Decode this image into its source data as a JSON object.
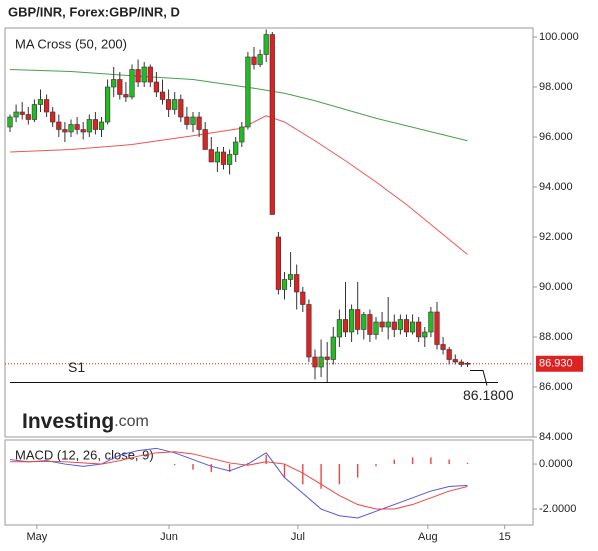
{
  "header": {
    "title": "GBP/INR, Forex:GBP/INR, D"
  },
  "chart_data": [
    {
      "type": "candlestick",
      "legend": "MA Cross (50, 200)",
      "logo": {
        "main": "Investing",
        "suffix": ".com"
      },
      "x": [
        0,
        1,
        2,
        3,
        4,
        5,
        6,
        7,
        8,
        9,
        10,
        11,
        12,
        13,
        14,
        15,
        16,
        17,
        18,
        19,
        20,
        21,
        22,
        23,
        24,
        25,
        26,
        27,
        28,
        29,
        30,
        31,
        32,
        33,
        34,
        35,
        36,
        37,
        38,
        39,
        40,
        41,
        42,
        43,
        44,
        45,
        46,
        47,
        48,
        49,
        50,
        51,
        52,
        53,
        54,
        55,
        56,
        57,
        58,
        59,
        60,
        61,
        62,
        63,
        64,
        65,
        66,
        67,
        68,
        69,
        70,
        71,
        72,
        73,
        74,
        75
      ],
      "open": [
        96.4,
        96.8,
        97.0,
        96.9,
        96.7,
        97.3,
        97.5,
        97.0,
        96.6,
        96.3,
        96.2,
        96.5,
        96.3,
        96.2,
        96.7,
        96.3,
        96.6,
        98.0,
        98.3,
        97.7,
        97.6,
        98.7,
        98.2,
        98.8,
        98.2,
        97.8,
        97.5,
        97.1,
        97.5,
        96.8,
        96.5,
        96.8,
        96.3,
        95.5,
        95.0,
        95.4,
        94.9,
        95.3,
        95.8,
        96.4,
        99.2,
        98.9,
        99.3,
        100.1,
        92.0,
        89.9,
        90.3,
        90.5,
        89.8,
        89.3,
        87.2,
        86.8,
        87.2,
        87.1,
        88.0,
        88.7,
        88.2,
        89.1,
        88.3,
        88.9,
        88.1,
        88.6,
        88.4,
        88.6,
        88.3,
        88.7,
        88.2,
        88.6,
        88.0,
        88.2,
        89.0,
        87.7,
        87.5,
        87.1,
        87.0,
        86.95
      ],
      "high": [
        96.9,
        97.3,
        97.4,
        97.2,
        97.5,
        97.9,
        97.7,
        97.2,
        96.9,
        96.6,
        96.7,
        96.8,
        96.6,
        96.9,
        97.0,
        96.8,
        98.3,
        98.8,
        98.6,
        98.2,
        98.9,
        99.1,
        99.0,
        98.9,
        98.6,
        98.3,
        97.9,
        97.8,
        97.7,
        97.2,
        97.0,
        97.0,
        96.6,
        96.0,
        95.6,
        95.6,
        95.5,
        96.0,
        96.6,
        99.4,
        99.6,
        99.5,
        100.3,
        100.2,
        92.2,
        90.6,
        91.4,
        90.9,
        90.0,
        89.5,
        87.5,
        87.9,
        87.8,
        88.4,
        89.1,
        90.2,
        89.3,
        90.2,
        89.0,
        89.1,
        88.8,
        89.0,
        89.6,
        88.9,
        88.9,
        88.9,
        88.9,
        88.8,
        88.4,
        89.2,
        89.4,
        88.0,
        87.6,
        87.3,
        87.1,
        87.0
      ],
      "low": [
        96.2,
        96.6,
        96.7,
        96.5,
        96.6,
        97.0,
        96.8,
        96.4,
        96.0,
        95.8,
        96.0,
        96.1,
        95.9,
        96.0,
        96.1,
        96.0,
        96.5,
        97.6,
        97.5,
        97.4,
        97.5,
        98.0,
        98.0,
        98.0,
        97.6,
        97.3,
        96.8,
        96.9,
        96.6,
        96.3,
        96.2,
        96.0,
        95.5,
        95.0,
        94.6,
        94.7,
        94.5,
        95.0,
        95.6,
        96.3,
        98.7,
        98.8,
        99.0,
        92.9,
        89.7,
        89.5,
        90.0,
        89.1,
        89.0,
        87.0,
        86.3,
        86.4,
        86.2,
        86.9,
        87.6,
        88.0,
        87.8,
        88.1,
        87.9,
        87.8,
        87.9,
        88.2,
        87.9,
        88.0,
        88.1,
        88.0,
        88.1,
        87.8,
        87.6,
        88.0,
        87.5,
        87.3,
        86.9,
        86.9,
        86.8,
        86.8
      ],
      "close": [
        96.8,
        97.0,
        96.9,
        96.7,
        97.3,
        97.5,
        97.0,
        96.6,
        96.3,
        96.2,
        96.5,
        96.3,
        96.2,
        96.7,
        96.3,
        96.6,
        98.0,
        98.3,
        97.7,
        97.6,
        98.7,
        98.2,
        98.8,
        98.2,
        97.8,
        97.5,
        97.1,
        97.5,
        96.8,
        96.5,
        96.8,
        96.3,
        95.5,
        95.0,
        95.4,
        94.9,
        95.3,
        95.8,
        96.4,
        99.2,
        98.9,
        99.3,
        100.1,
        92.9,
        89.9,
        90.3,
        90.5,
        89.8,
        89.3,
        87.2,
        86.8,
        87.2,
        87.1,
        88.0,
        88.7,
        88.2,
        89.1,
        88.3,
        88.9,
        88.1,
        88.6,
        88.4,
        88.6,
        88.3,
        88.7,
        88.2,
        88.6,
        88.0,
        88.2,
        89.0,
        87.7,
        87.5,
        87.1,
        87.0,
        86.9,
        86.93
      ],
      "up_color": "#22bb22",
      "down_color": "#dd2222",
      "series": [
        {
          "color": "#4a9e4a",
          "x": [
            0,
            10,
            20,
            30,
            40,
            45,
            50,
            55,
            60,
            65,
            70,
            75
          ],
          "values": [
            98.7,
            98.62,
            98.45,
            98.3,
            97.95,
            97.75,
            97.45,
            97.1,
            96.75,
            96.45,
            96.15,
            95.85
          ]
        },
        {
          "color": "#ee5555",
          "x": [
            0,
            10,
            20,
            30,
            38,
            42,
            45,
            50,
            55,
            60,
            65,
            70,
            75
          ],
          "values": [
            95.4,
            95.5,
            95.7,
            96.05,
            96.35,
            96.85,
            96.6,
            95.85,
            95.05,
            94.2,
            93.3,
            92.3,
            91.3
          ]
        }
      ],
      "last": {
        "value": 86.93,
        "label": "86.930"
      },
      "support": {
        "label": "S1",
        "value": 86.18,
        "value_label": "86.1800"
      },
      "xlim": [
        -0.82,
        85.74
      ],
      "ylim": [
        84,
        100.36
      ],
      "yticks": [
        {
          "value": 84,
          "label": "84.000"
        },
        {
          "value": 86,
          "label": "86.000"
        },
        {
          "value": 88,
          "label": "88.000"
        },
        {
          "value": 90,
          "label": "90.000"
        },
        {
          "value": 92,
          "label": "92.000"
        },
        {
          "value": 94,
          "label": "94.000"
        },
        {
          "value": 96,
          "label": "96.000"
        },
        {
          "value": 98,
          "label": "98.000"
        },
        {
          "value": 100,
          "label": "100.000"
        }
      ]
    },
    {
      "type": "macd",
      "legend": "MACD (12, 26, close, 9)",
      "series": [
        {
          "color": "#5555dd",
          "x": [
            0,
            3,
            6,
            9,
            12,
            15,
            18,
            21,
            24,
            27,
            30,
            33,
            36,
            39,
            42,
            45,
            48,
            51,
            54,
            57,
            60,
            63,
            66,
            69,
            72,
            75
          ],
          "values": [
            0.2,
            0.1,
            0.15,
            0.0,
            -0.1,
            0.0,
            0.4,
            0.6,
            0.7,
            0.5,
            0.2,
            -0.1,
            -0.3,
            0.0,
            0.5,
            -0.6,
            -1.3,
            -2.0,
            -2.3,
            -2.4,
            -2.1,
            -1.8,
            -1.5,
            -1.2,
            -1.0,
            -0.95
          ]
        },
        {
          "color": "#ee4444",
          "x": [
            0,
            3,
            6,
            9,
            12,
            15,
            18,
            21,
            24,
            27,
            30,
            33,
            36,
            39,
            42,
            45,
            48,
            51,
            54,
            57,
            60,
            63,
            66,
            69,
            72,
            75
          ],
          "values": [
            0.1,
            0.1,
            0.12,
            0.1,
            0.05,
            0.0,
            0.15,
            0.35,
            0.5,
            0.55,
            0.45,
            0.25,
            0.05,
            -0.05,
            0.1,
            0.0,
            -0.4,
            -0.9,
            -1.4,
            -1.8,
            -2.0,
            -2.0,
            -1.8,
            -1.5,
            -1.2,
            -1.0
          ]
        }
      ],
      "histogram": {
        "color": "#ee4444",
        "x": [
          27,
          30,
          33,
          36,
          39,
          42,
          45,
          48,
          51,
          54,
          57,
          60,
          63,
          66,
          69,
          72,
          75
        ],
        "values": [
          -0.05,
          -0.25,
          -0.35,
          -0.35,
          0.05,
          0.4,
          -0.6,
          -0.9,
          -1.1,
          -0.9,
          -0.6,
          -0.1,
          0.2,
          0.3,
          0.3,
          0.2,
          0.05
        ]
      },
      "xlim": [
        -0.82,
        85.74
      ],
      "ylim": [
        -2.71,
        1.07
      ],
      "yticks": [
        {
          "value": 0,
          "label": "0.0000"
        },
        {
          "value": -2,
          "label": "-2.0000"
        }
      ],
      "xticks": [
        {
          "value": 4.4,
          "label": "May"
        },
        {
          "value": 26.07,
          "label": "Jun"
        },
        {
          "value": 47.2,
          "label": "Jul"
        },
        {
          "value": 68.5,
          "label": "Aug"
        },
        {
          "value": 81.1,
          "label": "15"
        }
      ]
    }
  ]
}
